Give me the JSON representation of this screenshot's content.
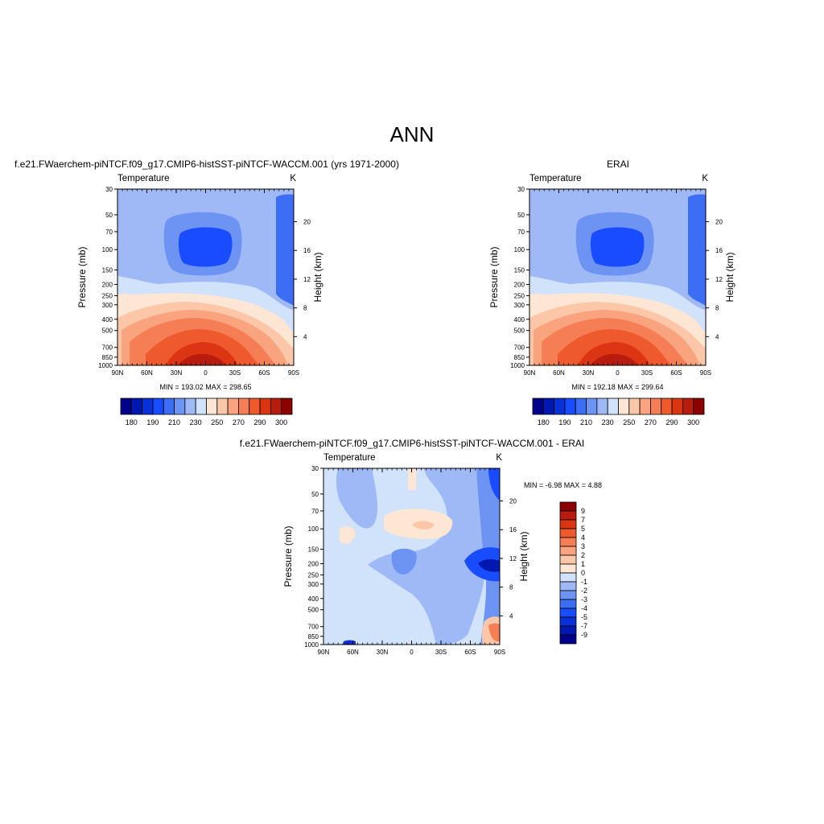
{
  "page_title": "ANN",
  "palette": {
    "temperature": [
      "#00008b",
      "#0018b0",
      "#0a30d8",
      "#1a4cff",
      "#3b6ef5",
      "#6d94f2",
      "#9fb9f7",
      "#d1e3fa",
      "#fde7d4",
      "#fcc7a8",
      "#f9a37f",
      "#f57e55",
      "#ee5a2e",
      "#db3513",
      "#b71c0e",
      "#8b0000"
    ],
    "difference": [
      "#00008b",
      "#0018b0",
      "#0a30d8",
      "#1a4cff",
      "#3b6ef5",
      "#6d94f2",
      "#9fb9f7",
      "#d1e3fa",
      "#fde7d4",
      "#fcc7a8",
      "#f9a37f",
      "#f57e55",
      "#ee5a2e",
      "#db3513",
      "#b71c0e",
      "#8b0000"
    ]
  },
  "panels": {
    "model": {
      "title": "f.e21.FWaerchem-piNTCF.f09_g17.CMIP6-histSST-piNTCF-WACCM.001 (yrs 1971-2000)",
      "left_label": "Temperature",
      "right_label": "K",
      "ylabel": "Pressure (mb)",
      "ylabel_right": "Height (km)",
      "stats": "MIN = 193.02  MAX = 298.65"
    },
    "obs": {
      "title": "ERAI",
      "left_label": "Temperature",
      "right_label": "K",
      "ylabel": "Pressure (mb)",
      "ylabel_right": "Height (km)",
      "stats": "MIN = 192.18  MAX = 299.64"
    },
    "diff": {
      "title": "f.e21.FWaerchem-piNTCF.f09_g17.CMIP6-histSST-piNTCF-WACCM.001 - ERAI",
      "left_label": "Temperature",
      "right_label": "K",
      "ylabel": "Pressure (mb)",
      "ylabel_right": "Height (km)",
      "stats": "MIN =  -6.98  MAX =   4.88"
    }
  },
  "chart_data": [
    {
      "type": "heatmap",
      "title": "f.e21.FWaerchem-piNTCF.f09_g17.CMIP6-histSST-piNTCF-WACCM.001 (yrs 1971-2000)",
      "xlabel": "",
      "ylabel": "Pressure (mb)",
      "y2label": "Height (km)",
      "x_ticks": [
        "90N",
        "60N",
        "30N",
        "0",
        "30S",
        "60S",
        "90S"
      ],
      "y_ticks": [
        30,
        50,
        70,
        100,
        150,
        200,
        250,
        300,
        400,
        500,
        700,
        850,
        1000
      ],
      "y2_ticks": [
        20,
        16,
        12,
        8,
        4
      ],
      "xlim": [
        90,
        -90
      ],
      "ylim": [
        30,
        1000
      ],
      "y_scale": "log",
      "colorbar_labels": [
        "180",
        "190",
        "210",
        "230",
        "250",
        "270",
        "290",
        "300"
      ],
      "min": 193.02,
      "max": 298.65
    },
    {
      "type": "heatmap",
      "title": "ERAI",
      "xlabel": "",
      "ylabel": "Pressure (mb)",
      "y2label": "Height (km)",
      "x_ticks": [
        "90N",
        "60N",
        "30N",
        "0",
        "30S",
        "60S",
        "90S"
      ],
      "y_ticks": [
        30,
        50,
        70,
        100,
        150,
        200,
        250,
        300,
        400,
        500,
        700,
        850,
        1000
      ],
      "y2_ticks": [
        20,
        16,
        12,
        8,
        4
      ],
      "xlim": [
        90,
        -90
      ],
      "ylim": [
        30,
        1000
      ],
      "y_scale": "log",
      "colorbar_labels": [
        "180",
        "190",
        "210",
        "230",
        "250",
        "270",
        "290",
        "300"
      ],
      "min": 192.18,
      "max": 299.64
    },
    {
      "type": "heatmap",
      "title": "f.e21.FWaerchem-piNTCF.f09_g17.CMIP6-histSST-piNTCF-WACCM.001 - ERAI",
      "xlabel": "",
      "ylabel": "Pressure (mb)",
      "y2label": "Height (km)",
      "x_ticks": [
        "90N",
        "60N",
        "30N",
        "0",
        "30S",
        "60S",
        "90S"
      ],
      "y_ticks": [
        30,
        50,
        70,
        100,
        150,
        200,
        250,
        300,
        400,
        500,
        700,
        850,
        1000
      ],
      "y2_ticks": [
        20,
        16,
        12,
        8,
        4
      ],
      "xlim": [
        90,
        -90
      ],
      "ylim": [
        30,
        1000
      ],
      "y_scale": "log",
      "colorbar_labels": [
        "9",
        "7",
        "5",
        "4",
        "3",
        "2",
        "1",
        "0",
        "-1",
        "-2",
        "-3",
        "-4",
        "-5",
        "-7",
        "-9"
      ],
      "min": -6.98,
      "max": 4.88
    }
  ]
}
